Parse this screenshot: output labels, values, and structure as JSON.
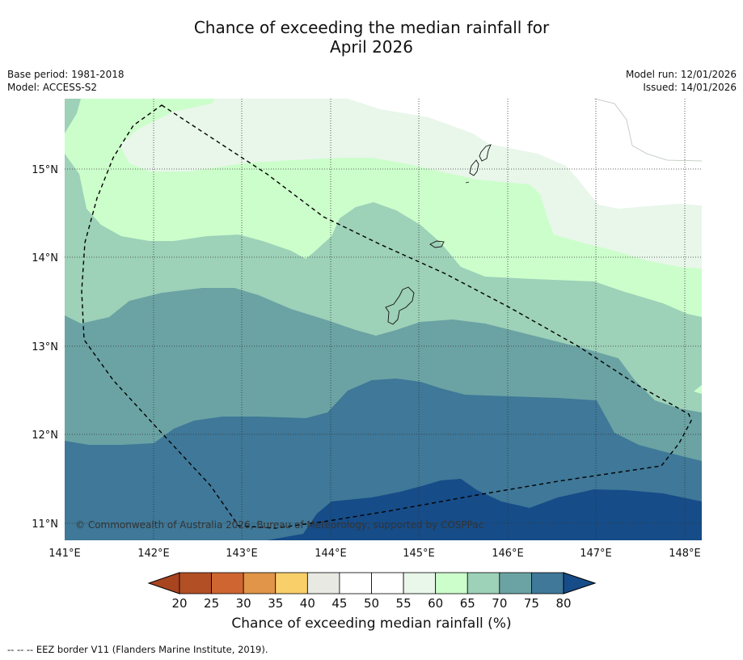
{
  "title": {
    "line1": "Chance of exceeding the median rainfall for",
    "line2": "April 2026"
  },
  "meta": {
    "base_period": "Base period: 1981-2018",
    "model": "Model: ACCESS-S2",
    "model_run": "Model run: 12/01/2026",
    "issued": "Issued: 14/01/2026"
  },
  "map": {
    "lat_labels": [
      "15°N",
      "14°N",
      "13°N",
      "12°N",
      "11°N"
    ],
    "lon_labels": [
      "141°E",
      "142°E",
      "143°E",
      "144°E",
      "145°E",
      "146°E",
      "147°E",
      "148°E"
    ],
    "copyright": "© Commonwealth of Australia 2026, Bureau of Meteorology, supported by COSPPac"
  },
  "colorbar": {
    "ticks": [
      "20",
      "25",
      "30",
      "35",
      "40",
      "45",
      "50",
      "55",
      "60",
      "65",
      "70",
      "75",
      "80"
    ],
    "colors": [
      "#b24f24",
      "#cf6631",
      "#e19548",
      "#f9cf6a",
      "#e9e9e4",
      "#ffffff",
      "#ffffff",
      "#e9f6ea",
      "#ccfecb",
      "#9dd1b8",
      "#6ba3a4",
      "#3f7898"
    ],
    "under_color": "#a8451f",
    "over_color": "#164c88",
    "label": "Chance of exceeding median rainfall (%)"
  },
  "footnote": "--  --  -- EEZ border V11 (Flanders Marine Institute, 2019)."
}
